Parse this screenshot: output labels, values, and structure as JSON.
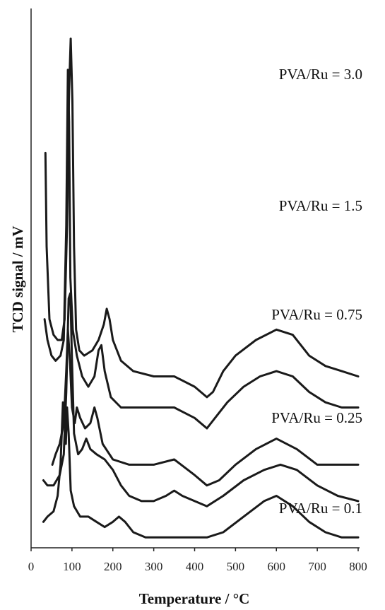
{
  "chart_data": {
    "type": "line",
    "xlabel": "Temperature / °C",
    "ylabel": "TCD signal / mV",
    "xlim": [
      0,
      800
    ],
    "x_ticks": [
      0,
      100,
      200,
      300,
      400,
      500,
      600,
      700,
      800
    ],
    "y_ticks_shown": false,
    "grid": false,
    "series": [
      {
        "name": "PVA/Ru = 3.0",
        "points": [
          [
            35,
            0.76
          ],
          [
            38,
            0.58
          ],
          [
            45,
            0.44
          ],
          [
            55,
            0.41
          ],
          [
            65,
            0.4
          ],
          [
            75,
            0.4
          ],
          [
            82,
            0.44
          ],
          [
            88,
            0.62
          ],
          [
            93,
            0.88
          ],
          [
            97,
            0.98
          ],
          [
            101,
            0.86
          ],
          [
            105,
            0.58
          ],
          [
            110,
            0.42
          ],
          [
            118,
            0.38
          ],
          [
            130,
            0.37
          ],
          [
            150,
            0.38
          ],
          [
            165,
            0.4
          ],
          [
            178,
            0.43
          ],
          [
            185,
            0.46
          ],
          [
            192,
            0.44
          ],
          [
            200,
            0.4
          ],
          [
            220,
            0.36
          ],
          [
            250,
            0.34
          ],
          [
            300,
            0.33
          ],
          [
            350,
            0.33
          ],
          [
            400,
            0.31
          ],
          [
            430,
            0.29
          ],
          [
            445,
            0.3
          ],
          [
            470,
            0.34
          ],
          [
            500,
            0.37
          ],
          [
            550,
            0.4
          ],
          [
            600,
            0.42
          ],
          [
            640,
            0.41
          ],
          [
            680,
            0.37
          ],
          [
            720,
            0.35
          ],
          [
            760,
            0.34
          ],
          [
            800,
            0.33
          ]
        ]
      },
      {
        "name": "PVA/Ru = 1.5",
        "points": [
          [
            33,
            0.44
          ],
          [
            40,
            0.4
          ],
          [
            50,
            0.37
          ],
          [
            60,
            0.36
          ],
          [
            72,
            0.37
          ],
          [
            80,
            0.4
          ],
          [
            86,
            0.62
          ],
          [
            90,
            0.92
          ],
          [
            93,
            0.82
          ],
          [
            96,
            0.52
          ],
          [
            102,
            0.42
          ],
          [
            112,
            0.37
          ],
          [
            125,
            0.33
          ],
          [
            140,
            0.31
          ],
          [
            155,
            0.33
          ],
          [
            165,
            0.38
          ],
          [
            172,
            0.39
          ],
          [
            180,
            0.34
          ],
          [
            195,
            0.29
          ],
          [
            220,
            0.27
          ],
          [
            260,
            0.27
          ],
          [
            300,
            0.27
          ],
          [
            350,
            0.27
          ],
          [
            400,
            0.25
          ],
          [
            430,
            0.23
          ],
          [
            450,
            0.25
          ],
          [
            480,
            0.28
          ],
          [
            520,
            0.31
          ],
          [
            560,
            0.33
          ],
          [
            600,
            0.34
          ],
          [
            640,
            0.33
          ],
          [
            680,
            0.3
          ],
          [
            720,
            0.28
          ],
          [
            760,
            0.27
          ],
          [
            800,
            0.27
          ]
        ]
      },
      {
        "name": "PVA/Ru = 0.75",
        "points": [
          [
            52,
            0.16
          ],
          [
            60,
            0.18
          ],
          [
            70,
            0.2
          ],
          [
            80,
            0.24
          ],
          [
            86,
            0.34
          ],
          [
            90,
            0.42
          ],
          [
            95,
            0.36
          ],
          [
            100,
            0.27
          ],
          [
            107,
            0.24
          ],
          [
            112,
            0.27
          ],
          [
            120,
            0.25
          ],
          [
            132,
            0.23
          ],
          [
            145,
            0.24
          ],
          [
            155,
            0.27
          ],
          [
            162,
            0.25
          ],
          [
            175,
            0.2
          ],
          [
            200,
            0.17
          ],
          [
            240,
            0.16
          ],
          [
            300,
            0.16
          ],
          [
            350,
            0.17
          ],
          [
            400,
            0.14
          ],
          [
            430,
            0.12
          ],
          [
            460,
            0.13
          ],
          [
            500,
            0.16
          ],
          [
            550,
            0.19
          ],
          [
            600,
            0.21
          ],
          [
            650,
            0.19
          ],
          [
            700,
            0.16
          ],
          [
            750,
            0.16
          ],
          [
            800,
            0.16
          ]
        ]
      },
      {
        "name": "PVA/Ru = 0.25",
        "points": [
          [
            30,
            0.13
          ],
          [
            40,
            0.12
          ],
          [
            55,
            0.12
          ],
          [
            70,
            0.14
          ],
          [
            80,
            0.18
          ],
          [
            86,
            0.3
          ],
          [
            92,
            0.48
          ],
          [
            96,
            0.49
          ],
          [
            100,
            0.36
          ],
          [
            105,
            0.22
          ],
          [
            115,
            0.18
          ],
          [
            125,
            0.19
          ],
          [
            135,
            0.21
          ],
          [
            145,
            0.19
          ],
          [
            160,
            0.18
          ],
          [
            180,
            0.17
          ],
          [
            200,
            0.15
          ],
          [
            220,
            0.12
          ],
          [
            240,
            0.1
          ],
          [
            270,
            0.09
          ],
          [
            300,
            0.09
          ],
          [
            330,
            0.1
          ],
          [
            350,
            0.11
          ],
          [
            370,
            0.1
          ],
          [
            400,
            0.09
          ],
          [
            430,
            0.08
          ],
          [
            470,
            0.1
          ],
          [
            520,
            0.13
          ],
          [
            570,
            0.15
          ],
          [
            610,
            0.16
          ],
          [
            650,
            0.15
          ],
          [
            700,
            0.12
          ],
          [
            750,
            0.1
          ],
          [
            800,
            0.09
          ]
        ]
      },
      {
        "name": "PVA/Ru = 0.1",
        "points": [
          [
            30,
            0.05
          ],
          [
            40,
            0.06
          ],
          [
            55,
            0.07
          ],
          [
            65,
            0.1
          ],
          [
            72,
            0.16
          ],
          [
            78,
            0.28
          ],
          [
            82,
            0.26
          ],
          [
            85,
            0.2
          ],
          [
            88,
            0.27
          ],
          [
            92,
            0.22
          ],
          [
            97,
            0.11
          ],
          [
            105,
            0.08
          ],
          [
            120,
            0.06
          ],
          [
            140,
            0.06
          ],
          [
            160,
            0.05
          ],
          [
            180,
            0.04
          ],
          [
            200,
            0.05
          ],
          [
            215,
            0.06
          ],
          [
            230,
            0.05
          ],
          [
            250,
            0.03
          ],
          [
            280,
            0.02
          ],
          [
            320,
            0.02
          ],
          [
            380,
            0.02
          ],
          [
            430,
            0.02
          ],
          [
            470,
            0.03
          ],
          [
            520,
            0.06
          ],
          [
            570,
            0.09
          ],
          [
            600,
            0.1
          ],
          [
            640,
            0.08
          ],
          [
            680,
            0.05
          ],
          [
            720,
            0.03
          ],
          [
            760,
            0.02
          ],
          [
            800,
            0.02
          ]
        ]
      }
    ]
  }
}
